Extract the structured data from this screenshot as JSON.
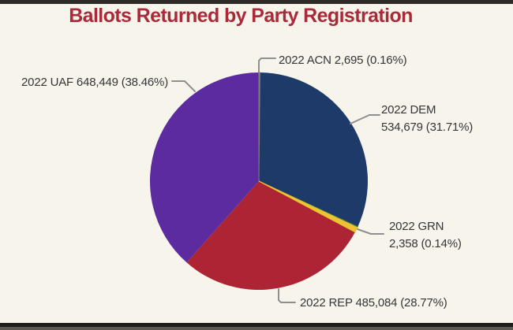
{
  "title": "Ballots Returned by Party Registration",
  "chart_data": {
    "type": "pie",
    "title": "Ballots Returned by Party Registration",
    "start_angle": "12 o'clock",
    "direction": "clockwise",
    "legend": "none (callout labels with leader lines)",
    "slices": [
      {
        "label": "2022 ACN",
        "value": 2695,
        "percent": 0.16,
        "color": "#7e7f85"
      },
      {
        "label": "2022 DEM",
        "value": 534679,
        "percent": 31.71,
        "color": "#1e3a68"
      },
      {
        "label": "2022 GRN",
        "value": 2358,
        "percent": 0.14,
        "color": "#3f7d3f"
      },
      {
        "label": "",
        "value": null,
        "percent": 0.76,
        "color": "#edc233",
        "note": "unlabeled thin gold sliver between GRN and REP"
      },
      {
        "label": "2022 REP",
        "value": 485084,
        "percent": 28.77,
        "color": "#ad2534"
      },
      {
        "label": "2022 UAF",
        "value": 648449,
        "percent": 38.46,
        "color": "#5d2ba0"
      }
    ]
  },
  "callouts": {
    "acn": "2022 ACN 2,695 (0.16%)",
    "uaf": "2022 UAF 648,449 (38.46%)",
    "dem_line1": "2022 DEM",
    "dem_line2": "534,679 (31.71%)",
    "grn_line1": "2022 GRN",
    "grn_line2": "2,358 (0.14%)",
    "rep": "2022 REP 485,084 (28.77%)"
  },
  "colors": {
    "background": "#f7f4ec",
    "title_text": "#aa2a3a",
    "label_text": "#363636",
    "leader_line": "#8f8f8f",
    "top_border": "#2e2a26",
    "bottom_border": "#1d1d1b"
  }
}
